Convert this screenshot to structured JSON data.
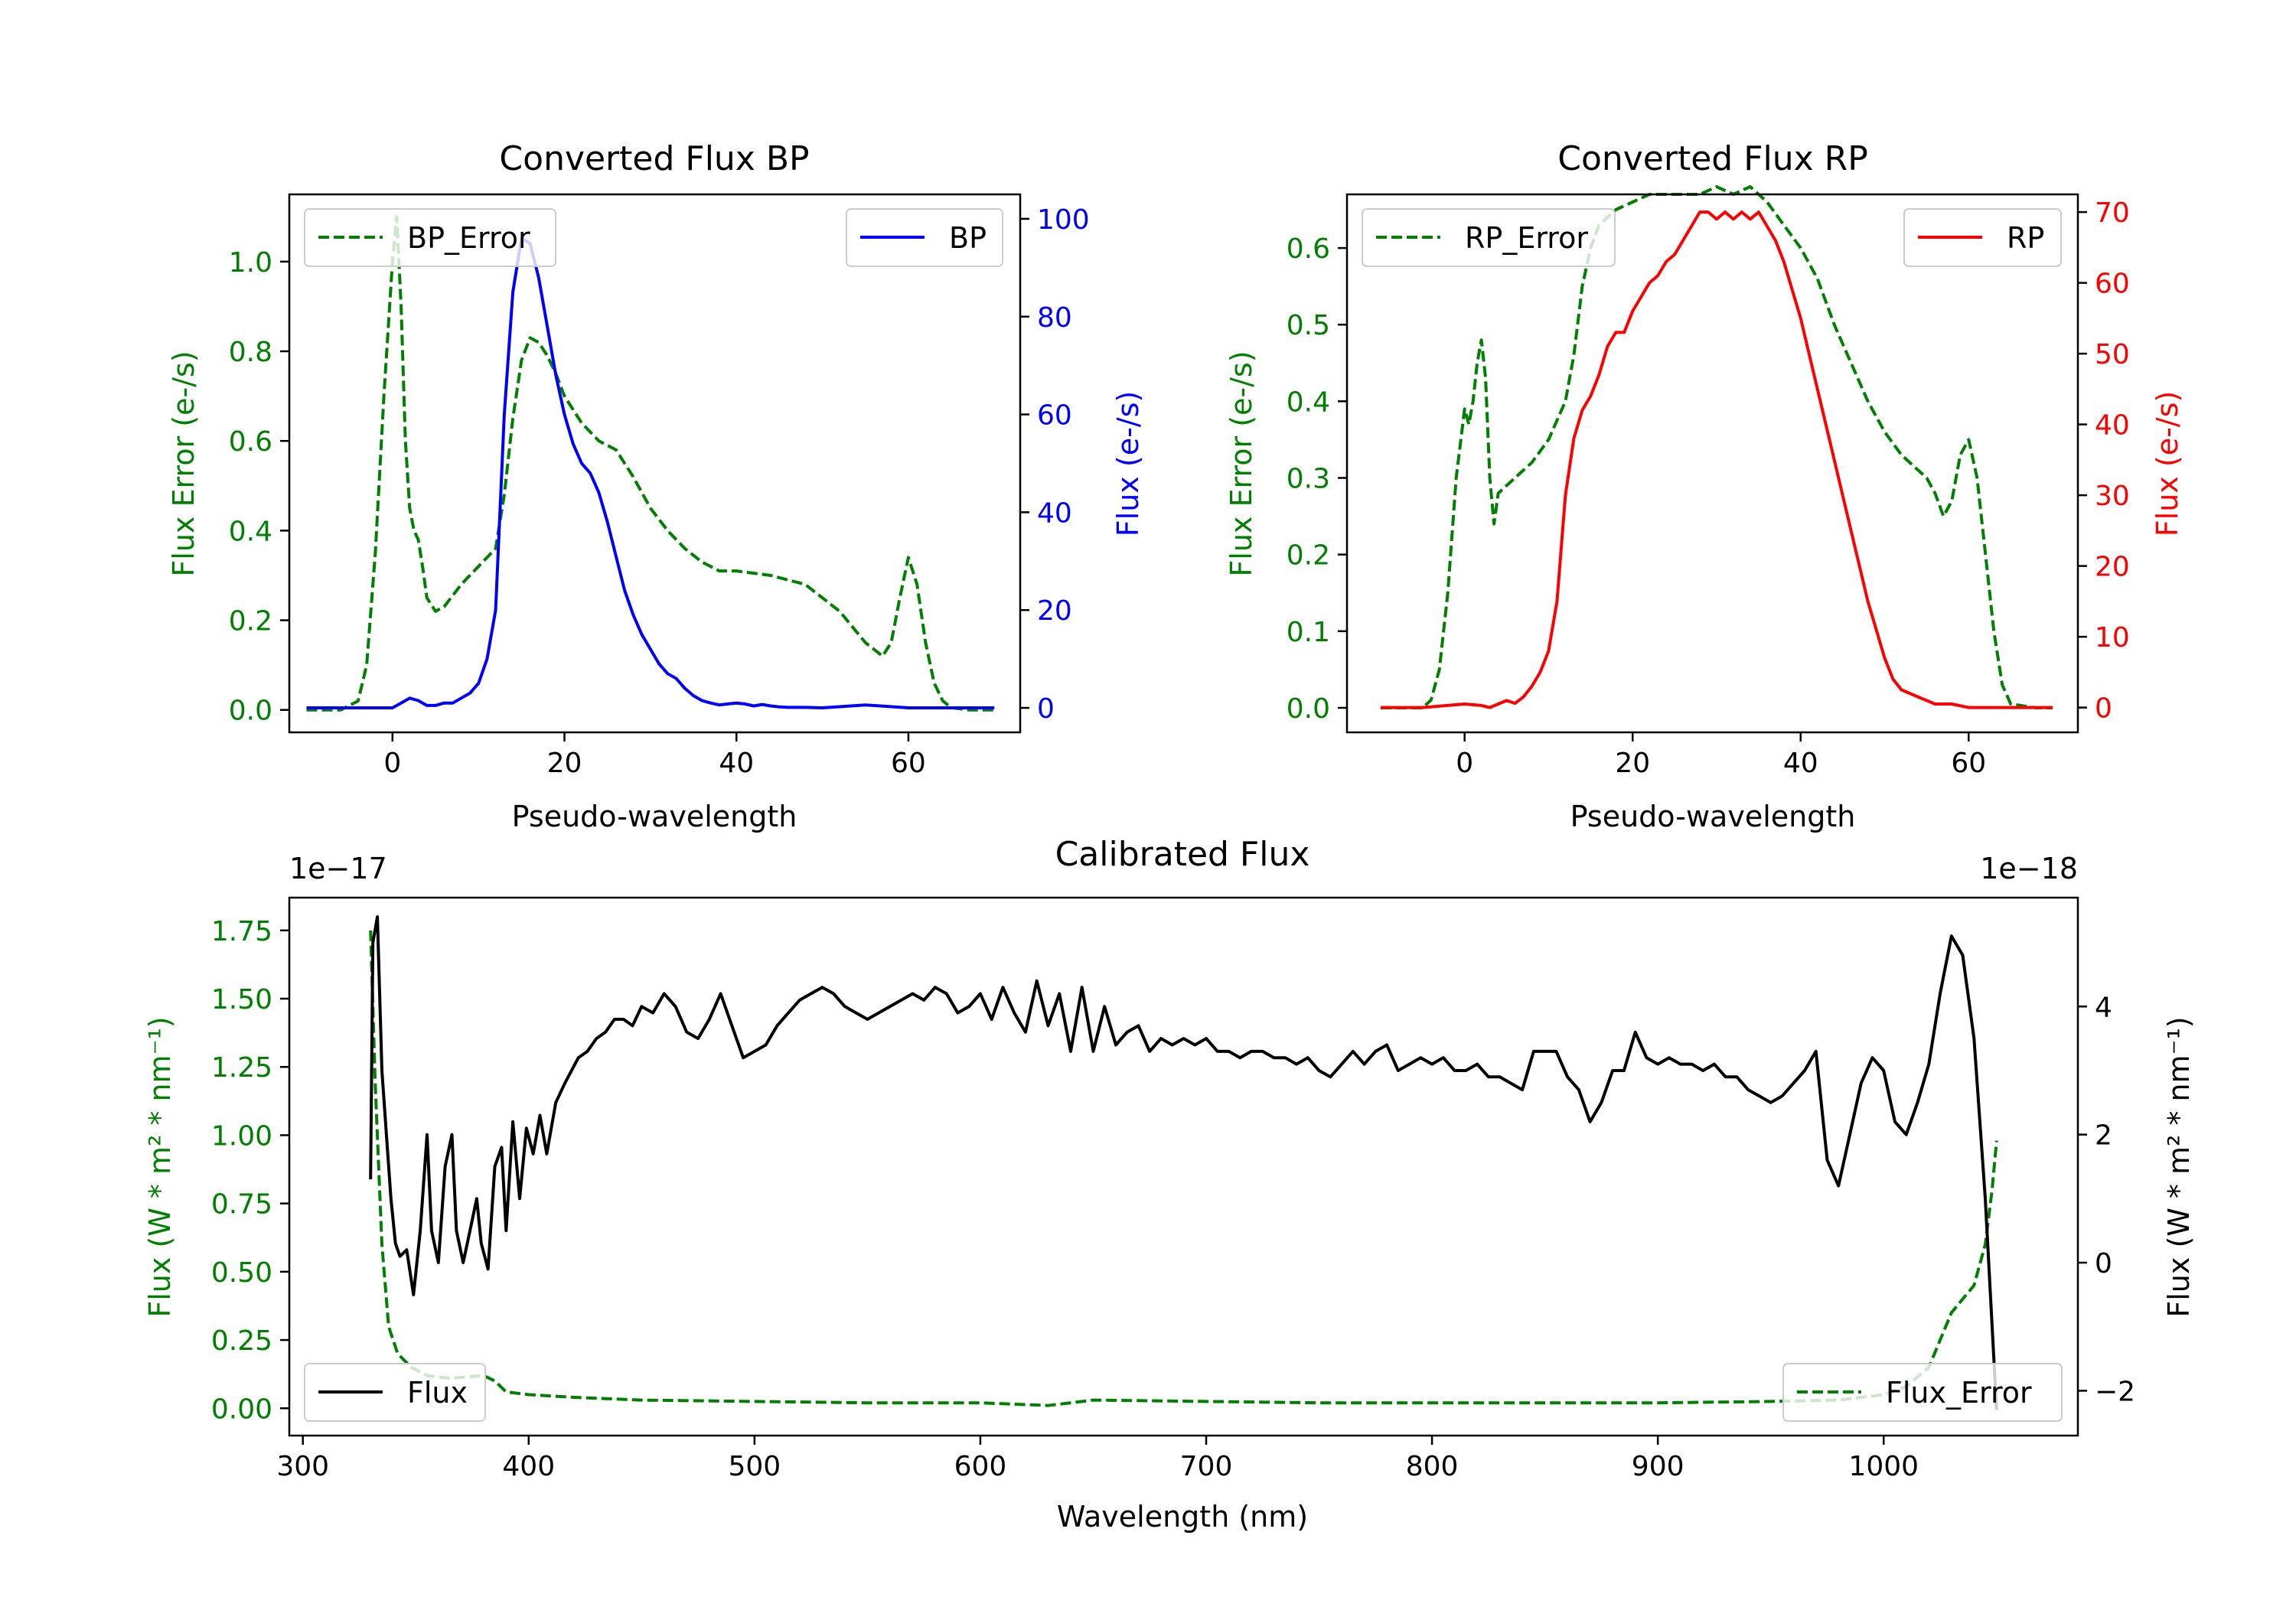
{
  "colors": {
    "green": "#008000",
    "blue": "#0000ff",
    "red": "#ff0000",
    "black": "#000000"
  },
  "chart_data": [
    {
      "id": "bp",
      "type": "line",
      "title": "Converted Flux BP",
      "xlabel": "Pseudo-wavelength",
      "ylabel_left": "Flux Error (e-/s)",
      "ylabel_right": "Flux (e-/s)",
      "xlim": [
        -12,
        73
      ],
      "ylim_left": [
        -0.05,
        1.15
      ],
      "ylim_right": [
        -5,
        105
      ],
      "x_ticks": [
        0,
        20,
        40,
        60
      ],
      "y_ticks_left": [
        0.0,
        0.2,
        0.4,
        0.6,
        0.8,
        1.0
      ],
      "y_ticks_left_labels": [
        "0.0",
        "0.2",
        "0.4",
        "0.6",
        "0.8",
        "1.0"
      ],
      "y_ticks_right": [
        0,
        20,
        40,
        60,
        80,
        100
      ],
      "y_ticks_right_labels": [
        "0",
        "20",
        "40",
        "60",
        "80",
        "100"
      ],
      "series": [
        {
          "name": "BP_Error",
          "axis": "left",
          "color": "#008000",
          "dash": true,
          "x": [
            -10,
            -6,
            -4,
            -3,
            -2,
            -1,
            0,
            0.5,
            1,
            1.5,
            2,
            2.5,
            3,
            3.5,
            4,
            5,
            6,
            8,
            10,
            12,
            13,
            14,
            15,
            16,
            17,
            18,
            19,
            20,
            22,
            24,
            26,
            28,
            30,
            32,
            34,
            36,
            38,
            40,
            44,
            48,
            52,
            55,
            57,
            58,
            59,
            60,
            61,
            62,
            63,
            64,
            65,
            67,
            70
          ],
          "y": [
            0.0,
            0.0,
            0.02,
            0.1,
            0.35,
            0.7,
            1.0,
            1.1,
            0.9,
            0.6,
            0.45,
            0.4,
            0.38,
            0.32,
            0.25,
            0.22,
            0.23,
            0.28,
            0.32,
            0.36,
            0.48,
            0.65,
            0.78,
            0.83,
            0.82,
            0.79,
            0.75,
            0.7,
            0.64,
            0.6,
            0.58,
            0.52,
            0.45,
            0.4,
            0.36,
            0.33,
            0.31,
            0.31,
            0.3,
            0.28,
            0.22,
            0.15,
            0.12,
            0.15,
            0.25,
            0.34,
            0.28,
            0.15,
            0.06,
            0.02,
            0.005,
            0.0,
            0.0
          ]
        },
        {
          "name": "BP",
          "axis": "right",
          "color": "#0000ff",
          "dash": false,
          "x": [
            -10,
            -5,
            0,
            1,
            2,
            3,
            4,
            5,
            6,
            7,
            8,
            9,
            10,
            11,
            12,
            13,
            14,
            15,
            16,
            17,
            18,
            19,
            20,
            21,
            22,
            23,
            24,
            25,
            26,
            27,
            28,
            29,
            30,
            31,
            32,
            33,
            34,
            35,
            36,
            37,
            38,
            39,
            40,
            41,
            42,
            43,
            44,
            45,
            46,
            48,
            50,
            55,
            60,
            65,
            70
          ],
          "y": [
            0,
            0,
            0,
            1,
            2,
            1.5,
            0.5,
            0.5,
            1,
            1,
            2,
            3,
            5,
            10,
            20,
            60,
            85,
            96,
            95,
            88,
            78,
            68,
            60,
            54,
            50,
            48,
            44,
            38,
            31,
            24,
            19,
            15,
            12,
            9,
            7,
            6,
            4,
            2.5,
            1.5,
            1,
            0.6,
            0.8,
            1,
            0.8,
            0.4,
            0.7,
            0.4,
            0.2,
            0.1,
            0.1,
            0,
            0.6,
            0,
            0,
            0
          ]
        }
      ],
      "legend_left": {
        "label": "BP_Error",
        "position": "upper left"
      },
      "legend_right": {
        "label": "BP",
        "position": "upper right"
      }
    },
    {
      "id": "rp",
      "type": "line",
      "title": "Converted Flux RP",
      "xlabel": "Pseudo-wavelength",
      "ylabel_left": "Flux Error (e-/s)",
      "ylabel_right": "Flux (e-/s)",
      "xlim": [
        -14,
        73
      ],
      "ylim_left": [
        -0.032,
        0.67
      ],
      "ylim_right": [
        -3.5,
        72.5
      ],
      "x_ticks": [
        0,
        20,
        40,
        60
      ],
      "y_ticks_left": [
        0.0,
        0.1,
        0.2,
        0.3,
        0.4,
        0.5,
        0.6
      ],
      "y_ticks_left_labels": [
        "0.0",
        "0.1",
        "0.2",
        "0.3",
        "0.4",
        "0.5",
        "0.6"
      ],
      "y_ticks_right": [
        0,
        10,
        20,
        30,
        40,
        50,
        60,
        70
      ],
      "y_ticks_right_labels": [
        "0",
        "10",
        "20",
        "30",
        "40",
        "50",
        "60",
        "70"
      ],
      "series": [
        {
          "name": "RP_Error",
          "axis": "left",
          "color": "#008000",
          "dash": true,
          "x": [
            -10,
            -5,
            -4,
            -3,
            -2,
            -1,
            0,
            0.5,
            1,
            1.5,
            2,
            2.5,
            3,
            3.5,
            4,
            5,
            6,
            7,
            8,
            10,
            12,
            13,
            14,
            15,
            16,
            18,
            20,
            22,
            24,
            26,
            28,
            30,
            32,
            34,
            35,
            36,
            38,
            40,
            42,
            44,
            46,
            48,
            50,
            52,
            54,
            55,
            56,
            57,
            58,
            59,
            60,
            61,
            62,
            63,
            64,
            65,
            68,
            70
          ],
          "y": [
            0.0,
            0.0,
            0.01,
            0.05,
            0.15,
            0.3,
            0.39,
            0.37,
            0.4,
            0.45,
            0.48,
            0.43,
            0.3,
            0.24,
            0.28,
            0.29,
            0.3,
            0.31,
            0.32,
            0.35,
            0.4,
            0.46,
            0.55,
            0.6,
            0.63,
            0.65,
            0.66,
            0.67,
            0.67,
            0.67,
            0.67,
            0.68,
            0.67,
            0.68,
            0.67,
            0.66,
            0.63,
            0.6,
            0.56,
            0.5,
            0.45,
            0.4,
            0.36,
            0.33,
            0.31,
            0.3,
            0.28,
            0.25,
            0.27,
            0.33,
            0.35,
            0.3,
            0.2,
            0.1,
            0.03,
            0.005,
            0.0,
            0.0
          ]
        },
        {
          "name": "RP",
          "axis": "right",
          "color": "#ff0000",
          "dash": false,
          "x": [
            -10,
            -5,
            0,
            2,
            3,
            4,
            5,
            6,
            7,
            8,
            9,
            10,
            11,
            12,
            13,
            14,
            15,
            16,
            17,
            18,
            19,
            20,
            21,
            22,
            23,
            24,
            25,
            26,
            27,
            28,
            29,
            30,
            31,
            32,
            33,
            34,
            35,
            36,
            37,
            38,
            39,
            40,
            41,
            42,
            43,
            44,
            45,
            46,
            47,
            48,
            49,
            50,
            51,
            52,
            53,
            54,
            55,
            56,
            58,
            60,
            65,
            70
          ],
          "y": [
            0,
            0,
            0.5,
            0.3,
            0,
            0.5,
            1,
            0.6,
            1.5,
            3,
            5,
            8,
            15,
            30,
            38,
            42,
            44,
            47,
            51,
            53,
            53,
            56,
            58,
            60,
            61,
            63,
            64,
            66,
            68,
            70,
            70,
            69,
            70,
            69,
            70,
            69,
            70,
            68,
            66,
            63,
            59,
            55,
            50,
            45,
            40,
            35,
            30,
            25,
            20,
            15,
            11,
            7,
            4,
            2.5,
            2,
            1.5,
            1,
            0.5,
            0.5,
            0,
            0,
            0
          ]
        }
      ],
      "legend_left": {
        "label": "RP_Error",
        "position": "upper left"
      },
      "legend_right": {
        "label": "RP",
        "position": "upper right"
      }
    },
    {
      "id": "cal",
      "type": "line",
      "title": "Calibrated Flux",
      "xlabel": "Wavelength (nm)",
      "ylabel_left": "Flux (W * m² * nm⁻¹)",
      "ylabel_right": "Flux (W * m² * nm⁻¹)",
      "offset_left": "1e−17",
      "offset_right": "1e−18",
      "xlim": [
        294,
        1086
      ],
      "ylim_left": [
        -0.1,
        1.87
      ],
      "ylim_right": [
        -2.7,
        5.7
      ],
      "x_ticks": [
        300,
        400,
        500,
        600,
        700,
        800,
        900,
        1000
      ],
      "y_ticks_left": [
        0.0,
        0.25,
        0.5,
        0.75,
        1.0,
        1.25,
        1.5,
        1.75
      ],
      "y_ticks_left_labels": [
        "0.00",
        "0.25",
        "0.50",
        "0.75",
        "1.00",
        "1.25",
        "1.50",
        "1.75"
      ],
      "y_ticks_right": [
        -2,
        0,
        2,
        4
      ],
      "y_ticks_right_labels": [
        "−2",
        "0",
        "2",
        "4"
      ],
      "series": [
        {
          "name": "Flux_Error",
          "axis": "left",
          "color": "#008000",
          "dash": true,
          "x": [
            330,
            332,
            335,
            338,
            342,
            348,
            355,
            365,
            380,
            385,
            390,
            400,
            420,
            450,
            500,
            550,
            600,
            630,
            640,
            650,
            700,
            750,
            800,
            850,
            900,
            950,
            980,
            1000,
            1010,
            1020,
            1025,
            1030,
            1035,
            1040,
            1045,
            1048,
            1050
          ],
          "y": [
            1.75,
            1.2,
            0.6,
            0.3,
            0.2,
            0.15,
            0.12,
            0.11,
            0.12,
            0.1,
            0.06,
            0.05,
            0.04,
            0.03,
            0.025,
            0.02,
            0.02,
            0.01,
            0.02,
            0.03,
            0.025,
            0.02,
            0.02,
            0.02,
            0.02,
            0.025,
            0.03,
            0.05,
            0.08,
            0.15,
            0.25,
            0.35,
            0.4,
            0.45,
            0.6,
            0.8,
            0.98
          ]
        },
        {
          "name": "Flux",
          "axis": "right",
          "color": "#000000",
          "dash": false,
          "x": [
            330,
            331,
            333,
            335,
            337,
            339,
            341,
            343,
            346,
            349,
            352,
            355,
            357,
            360,
            363,
            366,
            368,
            371,
            374,
            377,
            379,
            382,
            385,
            388,
            390,
            393,
            396,
            399,
            402,
            405,
            408,
            412,
            416,
            419,
            422,
            426,
            430,
            434,
            438,
            442,
            446,
            450,
            455,
            460,
            465,
            470,
            475,
            480,
            485,
            490,
            495,
            500,
            505,
            510,
            515,
            520,
            525,
            530,
            535,
            540,
            545,
            550,
            555,
            560,
            565,
            570,
            575,
            580,
            585,
            590,
            595,
            600,
            605,
            610,
            615,
            620,
            625,
            630,
            635,
            640,
            645,
            650,
            655,
            660,
            665,
            670,
            675,
            680,
            685,
            690,
            695,
            700,
            705,
            710,
            715,
            720,
            725,
            730,
            735,
            740,
            745,
            750,
            755,
            760,
            765,
            770,
            775,
            780,
            785,
            790,
            795,
            800,
            805,
            810,
            815,
            820,
            825,
            830,
            835,
            840,
            845,
            850,
            855,
            860,
            865,
            870,
            875,
            880,
            885,
            890,
            895,
            900,
            905,
            910,
            915,
            920,
            925,
            930,
            935,
            940,
            945,
            950,
            955,
            960,
            965,
            970,
            975,
            980,
            985,
            990,
            995,
            1000,
            1005,
            1010,
            1015,
            1020,
            1025,
            1030,
            1035,
            1040,
            1045,
            1050
          ],
          "y": [
            1.3,
            5.0,
            5.4,
            3.0,
            2.0,
            1.0,
            0.3,
            0.1,
            0.2,
            -0.5,
            0.5,
            2.0,
            0.5,
            0.0,
            1.5,
            2.0,
            0.5,
            0.0,
            0.5,
            1.0,
            0.3,
            -0.1,
            1.5,
            1.8,
            0.5,
            2.2,
            1.0,
            2.1,
            1.7,
            2.3,
            1.7,
            2.5,
            2.8,
            3.0,
            3.2,
            3.3,
            3.5,
            3.6,
            3.8,
            3.8,
            3.7,
            4.0,
            3.9,
            4.2,
            4.0,
            3.6,
            3.5,
            3.8,
            4.2,
            3.7,
            3.2,
            3.3,
            3.4,
            3.7,
            3.9,
            4.1,
            4.2,
            4.3,
            4.2,
            4.0,
            3.9,
            3.8,
            3.9,
            4.0,
            4.1,
            4.2,
            4.1,
            4.3,
            4.2,
            3.9,
            4.0,
            4.2,
            3.8,
            4.3,
            3.9,
            3.6,
            4.4,
            3.7,
            4.2,
            3.3,
            4.3,
            3.3,
            4.0,
            3.4,
            3.6,
            3.7,
            3.3,
            3.5,
            3.4,
            3.5,
            3.4,
            3.5,
            3.3,
            3.3,
            3.2,
            3.3,
            3.3,
            3.2,
            3.2,
            3.1,
            3.2,
            3.0,
            2.9,
            3.1,
            3.3,
            3.1,
            3.3,
            3.4,
            3.0,
            3.1,
            3.2,
            3.1,
            3.2,
            3.0,
            3.0,
            3.1,
            2.9,
            2.9,
            2.8,
            2.7,
            3.3,
            3.3,
            3.3,
            2.9,
            2.7,
            2.2,
            2.5,
            3.0,
            3.0,
            3.6,
            3.2,
            3.1,
            3.2,
            3.1,
            3.1,
            3.0,
            3.1,
            2.9,
            2.9,
            2.7,
            2.6,
            2.5,
            2.6,
            2.8,
            3.0,
            3.3,
            1.6,
            1.2,
            2.0,
            2.8,
            3.2,
            3.0,
            2.2,
            2.0,
            2.5,
            3.1,
            4.2,
            5.1,
            4.8,
            3.5,
            1.0,
            -2.3
          ]
        }
      ],
      "legend_left": {
        "label": "Flux",
        "position": "lower left"
      },
      "legend_right": {
        "label": "Flux_Error",
        "position": "lower right"
      }
    }
  ]
}
